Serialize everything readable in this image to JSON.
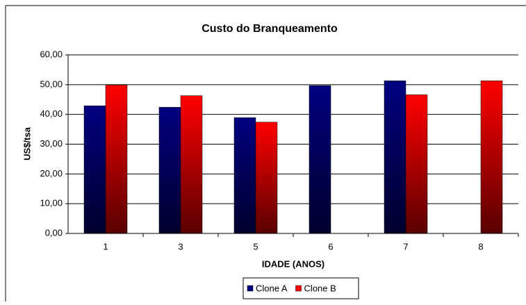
{
  "chart_data": {
    "type": "bar",
    "title": "Custo do Branqueamento",
    "x_label": "IDADE (ANOS)",
    "y_label": "US$/tsa",
    "categories": [
      "1",
      "3",
      "5",
      "6",
      "7",
      "8"
    ],
    "series": [
      {
        "name": "Clone A",
        "color": "#000080",
        "values": [
          42.9,
          42.4,
          38.9,
          49.7,
          51.3,
          null
        ]
      },
      {
        "name": "Clone B",
        "color": "#ff0000",
        "values": [
          49.9,
          46.3,
          37.4,
          null,
          46.6,
          51.3
        ]
      }
    ],
    "ylim": [
      0,
      60
    ],
    "yticks": [
      {
        "value": 0,
        "label": "0,00"
      },
      {
        "value": 10,
        "label": "10,00"
      },
      {
        "value": 20,
        "label": "20,00"
      },
      {
        "value": 30,
        "label": "30,00"
      },
      {
        "value": 40,
        "label": "40,00"
      },
      {
        "value": 50,
        "label": "50,00"
      },
      {
        "value": 60,
        "label": "60,00"
      }
    ],
    "grid": true,
    "legend": "bottom"
  }
}
